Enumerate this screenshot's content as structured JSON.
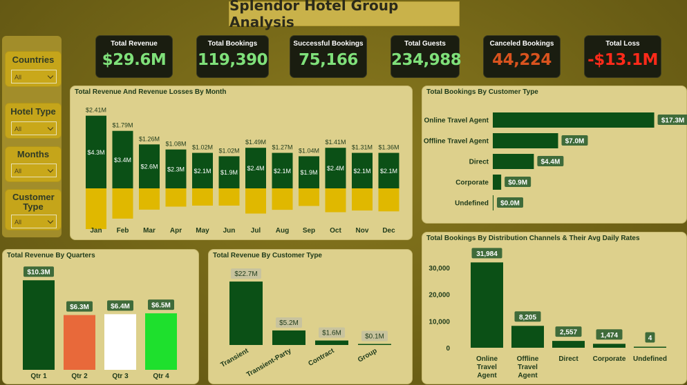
{
  "title": "Splendor Hotel Group Analysis",
  "slicers": [
    {
      "label": "Countries",
      "value": "All"
    },
    {
      "label": "Hotel Type",
      "value": "All"
    },
    {
      "label": "Months",
      "value": "All"
    },
    {
      "label": "Customer Type",
      "value": "All"
    }
  ],
  "kpis": [
    {
      "label": "Total Revenue",
      "value": "$29.6M",
      "color": "#7fe07a"
    },
    {
      "label": "Total Bookings",
      "value": "119,390",
      "color": "#7fe07a"
    },
    {
      "label": "Successful Bookings",
      "value": "75,166",
      "color": "#7fe07a"
    },
    {
      "label": "Total Guests",
      "value": "234,988",
      "color": "#7fe07a"
    },
    {
      "label": "Canceled Bookings",
      "value": "44,224",
      "color": "#d9531e"
    },
    {
      "label": "Total Loss",
      "value": "-$13.1M",
      "color": "#ff2a1a"
    }
  ],
  "colors": {
    "dark_green": "#0b5016",
    "gold": "#e0b800",
    "orange": "#e8693a",
    "white": "#ffffff",
    "bright_green": "#1ee02d",
    "label_bg": "#3f6b3a"
  },
  "chart_data": [
    {
      "type": "bar",
      "title": "Total Revenue And Revenue Losses By Month",
      "categories": [
        "Jan",
        "Feb",
        "Mar",
        "Apr",
        "May",
        "Jun",
        "Jul",
        "Aug",
        "Sep",
        "Oct",
        "Nov",
        "Dec"
      ],
      "series": [
        {
          "values": [
            4.3,
            3.4,
            2.6,
            2.3,
            2.1,
            1.9,
            2.4,
            2.1,
            1.9,
            2.4,
            2.1,
            2.1
          ],
          "labels": [
            "$4.3M",
            "$3.4M",
            "$2.6M",
            "$2.3M",
            "$2.1M",
            "$1.9M",
            "$2.4M",
            "$2.1M",
            "$1.9M",
            "$2.4M",
            "$2.1M",
            "$2.1M"
          ]
        },
        {
          "values": [
            2.41,
            1.79,
            1.26,
            1.08,
            1.02,
            1.02,
            1.49,
            1.27,
            1.04,
            1.41,
            1.31,
            1.36
          ],
          "labels": [
            "$2.41M",
            "$1.79M",
            "$1.26M",
            "$1.08M",
            "$1.02M",
            "$1.02M",
            "$1.49M",
            "$1.27M",
            "$1.04M",
            "$1.41M",
            "$1.31M",
            "$1.36M"
          ]
        }
      ]
    },
    {
      "type": "bar",
      "title": "Total Bookings By Customer Type",
      "categories": [
        "Online Travel Agent",
        "Offline Travel Agent",
        "Direct",
        "Corporate",
        "Undefined"
      ],
      "values": [
        17.3,
        7.0,
        4.4,
        0.9,
        0.0
      ],
      "labels": [
        "$17.3M",
        "$7.0M",
        "$4.4M",
        "$0.9M",
        "$0.0M"
      ]
    },
    {
      "type": "bar",
      "title": "Total Revenue By Quarters",
      "categories": [
        "Qtr 1",
        "Qtr 2",
        "Qtr 3",
        "Qtr 4"
      ],
      "values": [
        10.3,
        6.3,
        6.4,
        6.5
      ],
      "labels": [
        "$10.3M",
        "$6.3M",
        "$6.4M",
        "$6.5M"
      ]
    },
    {
      "type": "bar",
      "title": "Total Revenue By Customer Type",
      "categories": [
        "Transient",
        "Transient-Party",
        "Contract",
        "Group"
      ],
      "values": [
        22.7,
        5.2,
        1.6,
        0.1
      ],
      "labels": [
        "$22.7M",
        "$5.2M",
        "$1.6M",
        "$0.1M"
      ]
    },
    {
      "type": "bar",
      "title": "Total Bookings By Distribution Channels & Their Avg Daily Rates",
      "categories": [
        "Online Travel Agent",
        "Offline Travel Agent",
        "Direct",
        "Corporate",
        "Undefined"
      ],
      "values": [
        31984,
        8205,
        2557,
        1474,
        4
      ],
      "labels": [
        "31,984",
        "8,205",
        "2,557",
        "1,474",
        "4"
      ],
      "yticks": [
        "0",
        "10,000",
        "20,000",
        "30,000"
      ],
      "ylim": [
        0,
        33000
      ]
    }
  ]
}
